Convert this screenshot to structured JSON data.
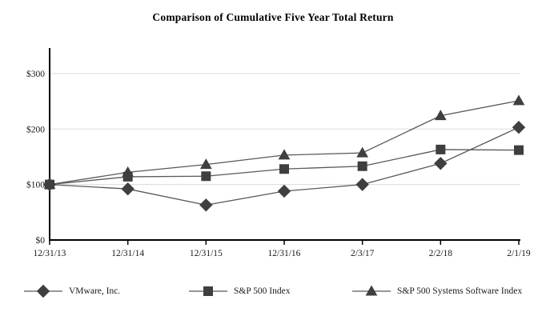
{
  "title": "Comparison of Cumulative Five Year Total Return",
  "chart_data": {
    "type": "line",
    "title": "Comparison of Cumulative Five Year Total Return",
    "categories": [
      "12/31/13",
      "12/31/14",
      "12/31/15",
      "12/31/16",
      "2/3/17",
      "2/2/18",
      "2/1/19"
    ],
    "series": [
      {
        "name": "VMware, Inc.",
        "marker": "diamond",
        "values": [
          100,
          92,
          63,
          88,
          100,
          138,
          203
        ]
      },
      {
        "name": "S&P 500 Index",
        "marker": "square",
        "values": [
          100,
          114,
          115,
          128,
          133,
          163,
          162
        ]
      },
      {
        "name": "S&P 500 Systems Software Index",
        "marker": "triangle",
        "values": [
          100,
          122,
          136,
          153,
          157,
          224,
          251
        ]
      }
    ],
    "xlabel": "",
    "ylabel": "",
    "y_ticks": [
      {
        "label": "$0",
        "value": 0
      },
      {
        "label": "$100",
        "value": 100
      },
      {
        "label": "$200",
        "value": 200
      },
      {
        "label": "$300",
        "value": 300
      }
    ],
    "ylim": [
      0,
      346
    ],
    "grid": "horizontal",
    "legend_position": "bottom",
    "colors": {
      "marker": "#3f3f3f",
      "line": "#595959",
      "grid": "#dcdcdc",
      "axis": "#000000",
      "text": "#1a1a1a",
      "background": "#ffffff"
    }
  }
}
